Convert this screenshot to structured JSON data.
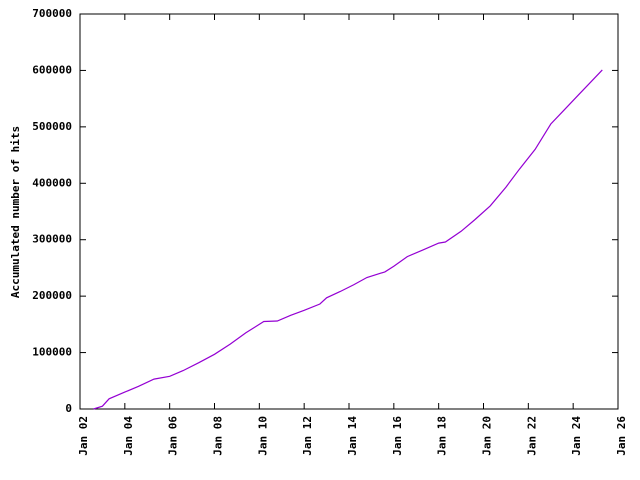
{
  "chart_data": {
    "type": "line",
    "y_label": "Accumulated number of hits",
    "x": [
      2.6,
      3.0,
      3.3,
      4.0,
      4.6,
      5.3,
      6.0,
      6.6,
      7.3,
      8.0,
      8.7,
      9.4,
      10.2,
      10.8,
      11.4,
      12.0,
      12.7,
      13.0,
      13.6,
      14.2,
      14.8,
      15.6,
      16.0,
      16.6,
      17.3,
      18.0,
      18.3,
      19.0,
      19.6,
      20.3,
      21.0,
      21.6,
      22.3,
      23.0,
      23.6,
      24.2,
      24.8,
      25.3
    ],
    "values": [
      0,
      5000,
      18000,
      30000,
      40000,
      53000,
      58000,
      68000,
      82000,
      97000,
      115000,
      135000,
      155000,
      156000,
      166000,
      175000,
      186000,
      197000,
      208000,
      220000,
      233000,
      243000,
      253000,
      270000,
      282000,
      294000,
      296000,
      315000,
      335000,
      360000,
      393000,
      425000,
      460000,
      505000,
      530000,
      555000,
      580000,
      601000
    ],
    "color": "#9400d3",
    "xlim": [
      2,
      26
    ],
    "xticks": [
      {
        "value": 2,
        "label": "Jan 02"
      },
      {
        "value": 4,
        "label": "Jan 04"
      },
      {
        "value": 6,
        "label": "Jan 06"
      },
      {
        "value": 8,
        "label": "Jan 08"
      },
      {
        "value": 10,
        "label": "Jan 10"
      },
      {
        "value": 12,
        "label": "Jan 12"
      },
      {
        "value": 14,
        "label": "Jan 14"
      },
      {
        "value": 16,
        "label": "Jan 16"
      },
      {
        "value": 18,
        "label": "Jan 18"
      },
      {
        "value": 20,
        "label": "Jan 20"
      },
      {
        "value": 22,
        "label": "Jan 22"
      },
      {
        "value": 24,
        "label": "Jan 24"
      },
      {
        "value": 26,
        "label": "Jan 26"
      }
    ],
    "ylim": [
      0,
      700000
    ],
    "yticks": [
      0,
      100000,
      200000,
      300000,
      400000,
      500000,
      600000,
      700000
    ]
  }
}
